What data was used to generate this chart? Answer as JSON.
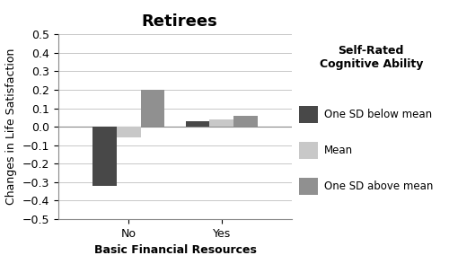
{
  "title": "Retirees",
  "xlabel": "Basic Financial Resources",
  "ylabel": "Changes in Life Satisfaction",
  "categories": [
    "No",
    "Yes"
  ],
  "series": [
    {
      "label": "One SD below mean",
      "color": "#484848",
      "values": [
        -0.32,
        0.03
      ]
    },
    {
      "label": "Mean",
      "color": "#c8c8c8",
      "values": [
        -0.06,
        0.04
      ]
    },
    {
      "label": "One SD above mean",
      "color": "#909090",
      "values": [
        0.2,
        0.06
      ]
    }
  ],
  "legend_title": "Self-Rated\nCognitive Ability",
  "ylim": [
    -0.5,
    0.5
  ],
  "yticks": [
    -0.5,
    -0.4,
    -0.3,
    -0.2,
    -0.1,
    0.0,
    0.1,
    0.2,
    0.3,
    0.4,
    0.5
  ],
  "bar_width": 0.18,
  "background_color": "#ffffff",
  "title_fontsize": 13,
  "label_fontsize": 9,
  "tick_fontsize": 9,
  "legend_fontsize": 8.5,
  "legend_title_fontsize": 9
}
